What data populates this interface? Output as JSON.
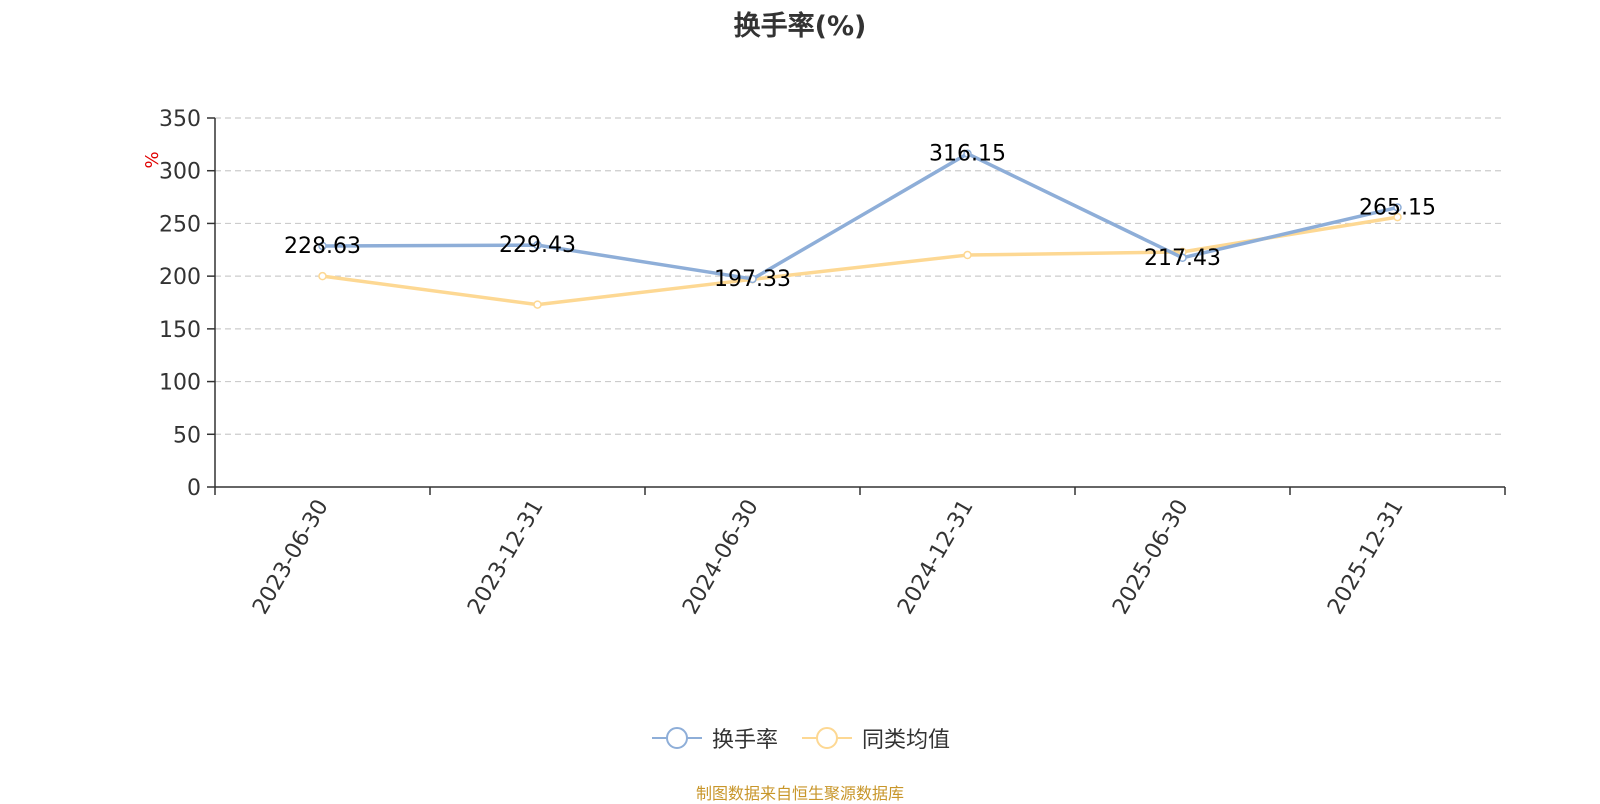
{
  "chart_data": {
    "type": "line",
    "title": "换手率(%)",
    "ylabel": "%",
    "xlabel": "",
    "categories": [
      "2023-06-30",
      "2023-12-31",
      "2024-06-30",
      "2024-12-31",
      "2025-06-30",
      "2025-12-31"
    ],
    "ylim": [
      0,
      350
    ],
    "yticks": [
      0,
      50,
      100,
      150,
      200,
      250,
      300,
      350
    ],
    "grid": true,
    "legend_position": "bottom",
    "series": [
      {
        "name": "换手率",
        "values": [
          228.63,
          229.43,
          197.33,
          316.15,
          217.43,
          265.15
        ],
        "color": "#8eaed8",
        "show_labels": true
      },
      {
        "name": "同类均值",
        "values": [
          200,
          173,
          197,
          220,
          223,
          256
        ],
        "color": "#fdd893",
        "show_labels": false
      }
    ]
  },
  "source_note": "制图数据来自恒生聚源数据库",
  "colors": {
    "source_note": "#c8962a",
    "axis": "#333333",
    "grid": "#cccccc",
    "ylabel": "#e00000"
  }
}
